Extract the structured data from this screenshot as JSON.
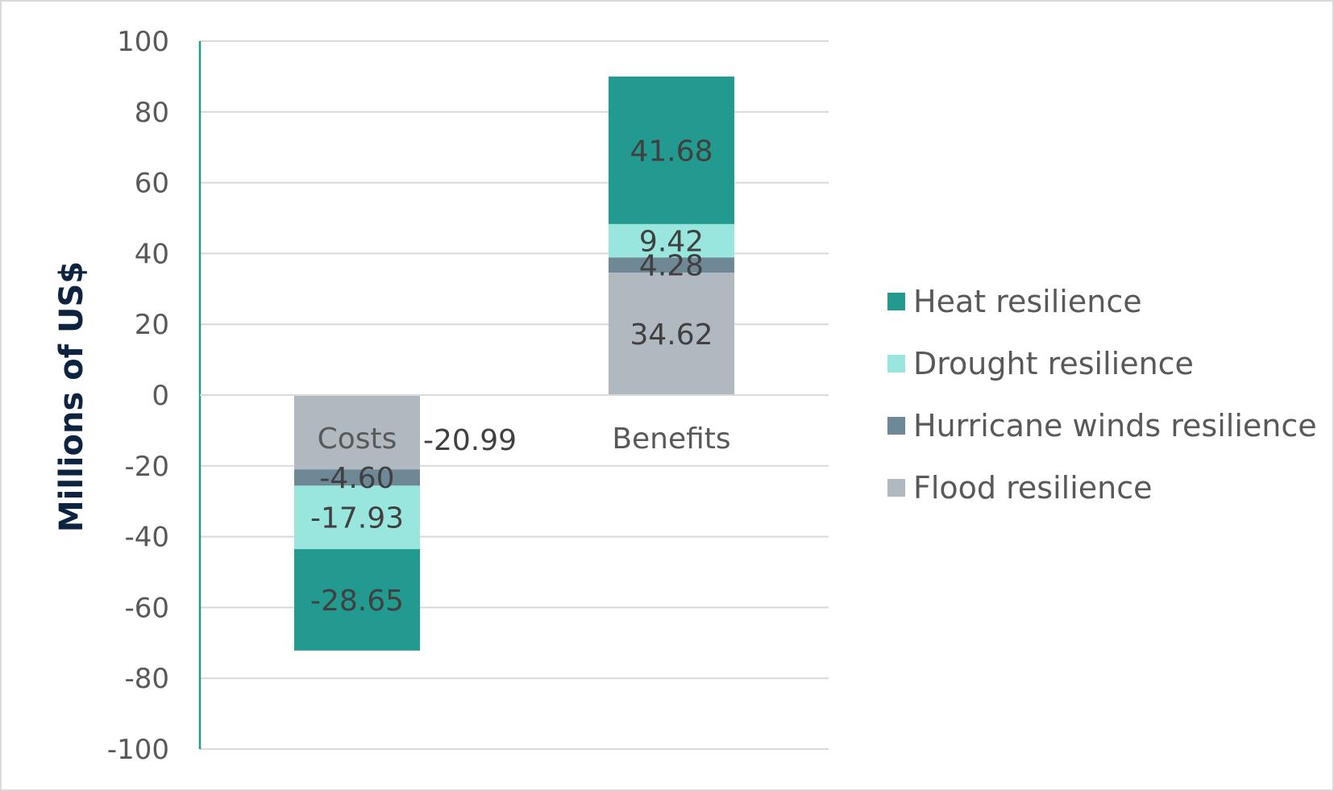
{
  "chart_data": {
    "type": "bar",
    "stacked": true,
    "categories": [
      "Costs",
      "Benefits"
    ],
    "series": [
      {
        "name": "Flood resilience",
        "values": [
          -20.99,
          34.62
        ],
        "color": "#b0b9bf"
      },
      {
        "name": "Hurricane winds resilience",
        "values": [
          -4.6,
          4.28
        ],
        "color": "#6e8896"
      },
      {
        "name": "Drought resilience",
        "values": [
          -17.93,
          9.42
        ],
        "color": "#98e6de"
      },
      {
        "name": "Heat resilience",
        "values": [
          -28.65,
          41.68
        ],
        "color": "#229a8f"
      }
    ],
    "data_labels": [
      [
        "-20.99",
        "34.62"
      ],
      [
        "-4.60",
        "4.28"
      ],
      [
        "-17.93",
        "9.42"
      ],
      [
        "-28.65",
        "41.68"
      ]
    ],
    "ylabel": "Millions of US$",
    "ylim": [
      -100,
      100
    ],
    "yticks": [
      100,
      80,
      60,
      40,
      20,
      0,
      -20,
      -40,
      -60,
      -80,
      -100
    ],
    "legend_order": [
      "Heat resilience",
      "Drought resilience",
      "Hurricane winds resilience",
      "Flood resilience"
    ],
    "legend_position": "right",
    "grid": true
  }
}
